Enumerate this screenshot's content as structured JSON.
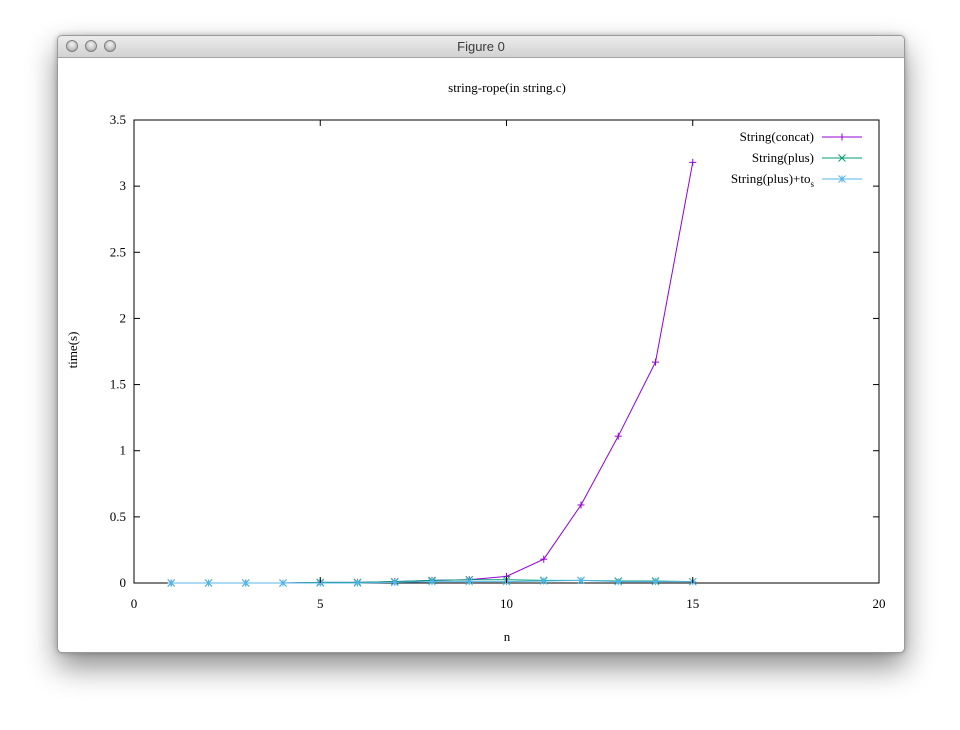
{
  "window": {
    "title": "Figure 0"
  },
  "chart_data": {
    "type": "line",
    "title": "string-rope(in string.c)",
    "xlabel": "n",
    "ylabel": "time(s)",
    "xlim": [
      0,
      20
    ],
    "ylim": [
      0,
      3.5
    ],
    "xticks": [
      0,
      5,
      10,
      15,
      20
    ],
    "xtick_labels": [
      "0",
      "5",
      "10",
      "15",
      "20"
    ],
    "yticks": [
      0,
      0.5,
      1,
      1.5,
      2,
      2.5,
      3,
      3.5
    ],
    "ytick_labels": [
      "0",
      "0.5",
      "1",
      "1.5",
      "2",
      "2.5",
      "3",
      "3.5"
    ],
    "grid": false,
    "legend_position": "top-right",
    "x": [
      1,
      2,
      3,
      4,
      5,
      6,
      7,
      8,
      9,
      10,
      11,
      12,
      13,
      14,
      15
    ],
    "series": [
      {
        "name": "String(concat)",
        "marker": "plus",
        "color": "#9400d3",
        "values": [
          0.0,
          0.0,
          0.0,
          0.0,
          0.005,
          0.005,
          0.01,
          0.02,
          0.025,
          0.05,
          0.18,
          0.59,
          1.11,
          1.67,
          3.18
        ]
      },
      {
        "name": "String(plus)",
        "marker": "x",
        "color": "#009e73",
        "values": [
          0.0,
          0.0,
          0.0,
          0.0,
          0.005,
          0.005,
          0.01,
          0.02,
          0.025,
          0.025,
          0.02,
          0.02,
          0.015,
          0.015,
          0.01
        ]
      },
      {
        "name": "String(plus)+to",
        "name_subscript": "s",
        "marker": "star",
        "color": "#56b4e9",
        "values": [
          0.0,
          0.0,
          0.0,
          0.0,
          0.0,
          0.0,
          0.005,
          0.01,
          0.01,
          0.01,
          0.015,
          0.02,
          0.01,
          0.01,
          0.01
        ]
      }
    ]
  }
}
